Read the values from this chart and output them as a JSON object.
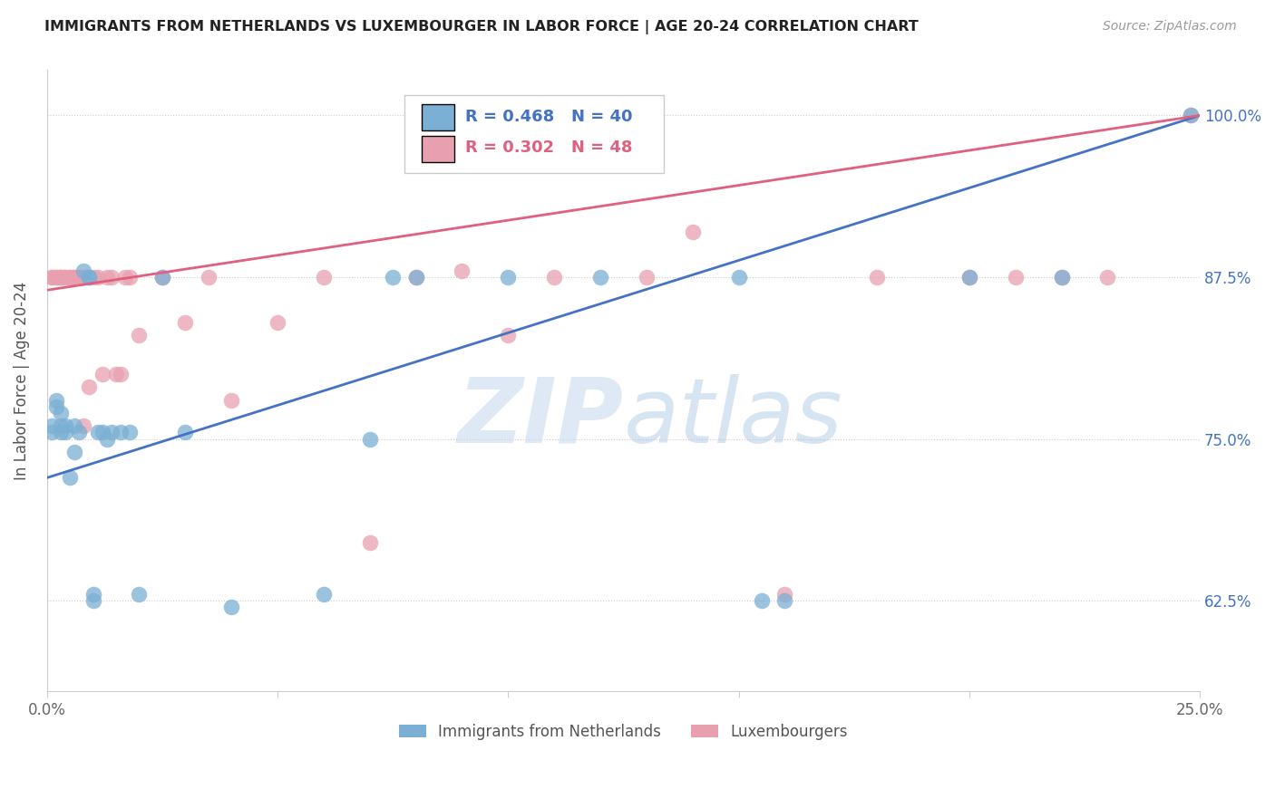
{
  "title": "IMMIGRANTS FROM NETHERLANDS VS LUXEMBOURGER IN LABOR FORCE | AGE 20-24 CORRELATION CHART",
  "source": "Source: ZipAtlas.com",
  "ylabel": "In Labor Force | Age 20-24",
  "watermark_zip": "ZIP",
  "watermark_atlas": "atlas",
  "legend1_label": "Immigrants from Netherlands",
  "legend2_label": "Luxembourgers",
  "r1": 0.468,
  "n1": 40,
  "r2": 0.302,
  "n2": 48,
  "color1": "#7bafd4",
  "color2": "#e8a0b0",
  "line1_color": "#4472c4",
  "line2_color": "#e06080",
  "ytick_color": "#4472c4",
  "ytick_labels": [
    "62.5%",
    "75.0%",
    "87.5%",
    "100.0%"
  ],
  "ytick_values": [
    0.625,
    0.75,
    0.875,
    1.0
  ],
  "xlim": [
    0.0,
    0.25
  ],
  "ylim": [
    0.555,
    1.035
  ],
  "blue_x": [
    0.001,
    0.001,
    0.002,
    0.002,
    0.003,
    0.003,
    0.003,
    0.004,
    0.004,
    0.005,
    0.006,
    0.006,
    0.007,
    0.008,
    0.009,
    0.009,
    0.01,
    0.01,
    0.011,
    0.012,
    0.013,
    0.014,
    0.016,
    0.018,
    0.02,
    0.025,
    0.03,
    0.04,
    0.06,
    0.07,
    0.075,
    0.08,
    0.1,
    0.12,
    0.15,
    0.155,
    0.16,
    0.2,
    0.22,
    0.248
  ],
  "blue_y": [
    0.755,
    0.76,
    0.775,
    0.78,
    0.755,
    0.76,
    0.77,
    0.755,
    0.76,
    0.72,
    0.74,
    0.76,
    0.755,
    0.88,
    0.875,
    0.875,
    0.625,
    0.63,
    0.755,
    0.755,
    0.75,
    0.755,
    0.755,
    0.755,
    0.63,
    0.875,
    0.755,
    0.62,
    0.63,
    0.75,
    0.875,
    0.875,
    0.875,
    0.875,
    0.875,
    0.625,
    0.625,
    0.875,
    0.875,
    1.0
  ],
  "pink_x": [
    0.001,
    0.001,
    0.002,
    0.002,
    0.003,
    0.003,
    0.003,
    0.004,
    0.004,
    0.005,
    0.005,
    0.006,
    0.006,
    0.007,
    0.007,
    0.008,
    0.008,
    0.009,
    0.01,
    0.011,
    0.012,
    0.013,
    0.014,
    0.015,
    0.016,
    0.017,
    0.018,
    0.02,
    0.025,
    0.03,
    0.035,
    0.04,
    0.05,
    0.06,
    0.07,
    0.08,
    0.09,
    0.1,
    0.11,
    0.13,
    0.14,
    0.16,
    0.18,
    0.2,
    0.21,
    0.22,
    0.23,
    0.248
  ],
  "pink_y": [
    0.875,
    0.875,
    0.875,
    0.875,
    0.875,
    0.875,
    0.875,
    0.875,
    0.875,
    0.875,
    0.875,
    0.875,
    0.875,
    0.875,
    0.875,
    0.76,
    0.875,
    0.79,
    0.875,
    0.875,
    0.8,
    0.875,
    0.875,
    0.8,
    0.8,
    0.875,
    0.875,
    0.83,
    0.875,
    0.84,
    0.875,
    0.78,
    0.84,
    0.875,
    0.67,
    0.875,
    0.88,
    0.83,
    0.875,
    0.875,
    0.91,
    0.63,
    0.875,
    0.875,
    0.875,
    0.875,
    0.875,
    1.0
  ],
  "blue_line_x0": 0.0,
  "blue_line_y0": 0.72,
  "blue_line_x1": 0.25,
  "blue_line_y1": 1.0,
  "pink_line_x0": 0.0,
  "pink_line_y0": 0.865,
  "pink_line_x1": 0.25,
  "pink_line_y1": 1.0
}
